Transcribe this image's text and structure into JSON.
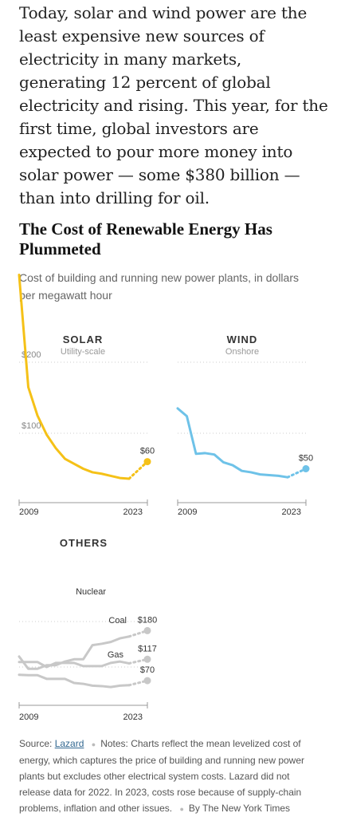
{
  "article": {
    "paragraph": "Today, solar and wind power are the least expensive new sources of electricity in many markets, generating 12 percent of global electricity and rising. This year, for the first time, global investors are expected to pour more money into solar power — some $380 billion — than into drilling for oil."
  },
  "chart": {
    "title": "The Cost of Renewable Energy Has Plummeted",
    "subtitle": "Cost of building and running new power plants, in dollars per megawatt hour"
  },
  "chart_data": [
    {
      "type": "line",
      "title": "SOLAR",
      "subtitle": "Utility-scale",
      "color": "#f5c117",
      "ylim": [
        0,
        330
      ],
      "y_ticks": [
        {
          "value": 200,
          "label": "$200"
        },
        {
          "value": 100,
          "label": "$100"
        }
      ],
      "x_ticks": [
        "2009",
        "2023"
      ],
      "end_label": "$60",
      "series": [
        {
          "x": [
            2009,
            2010,
            2011,
            2012,
            2013,
            2014,
            2015,
            2016,
            2017,
            2018,
            2019,
            2020,
            2021,
            2023
          ],
          "y": [
            323,
            165,
            125,
            98,
            79,
            64,
            57,
            50,
            45,
            43,
            40,
            37,
            36,
            60
          ],
          "gap_before_last": true
        }
      ]
    },
    {
      "type": "line",
      "title": "WIND",
      "subtitle": "Onshore",
      "color": "#6ec2e8",
      "ylim": [
        0,
        330
      ],
      "x_ticks": [
        "2009",
        "2023"
      ],
      "end_label": "$50",
      "series": [
        {
          "x": [
            2009,
            2010,
            2011,
            2012,
            2013,
            2014,
            2015,
            2016,
            2017,
            2018,
            2019,
            2020,
            2021,
            2023
          ],
          "y": [
            135,
            124,
            71,
            72,
            70,
            59,
            55,
            47,
            45,
            42,
            41,
            40,
            38,
            50
          ],
          "gap_before_last": true
        }
      ]
    },
    {
      "type": "line",
      "title": "OTHERS",
      "color": "#c8c8c8",
      "ylim": [
        0,
        330
      ],
      "x_ticks": [
        "2009",
        "2023"
      ],
      "series": [
        {
          "name": "Nuclear",
          "end_label": "$180",
          "x": [
            2009,
            2010,
            2011,
            2012,
            2013,
            2014,
            2015,
            2016,
            2017,
            2018,
            2019,
            2020,
            2021,
            2023
          ],
          "y": [
            123,
            96,
            96,
            104,
            104,
            112,
            117,
            117,
            148,
            151,
            155,
            163,
            167,
            180
          ],
          "gap_before_last": true
        },
        {
          "name": "Coal",
          "end_label": "$117",
          "x": [
            2009,
            2010,
            2011,
            2012,
            2013,
            2014,
            2015,
            2016,
            2017,
            2018,
            2019,
            2020,
            2021,
            2023
          ],
          "y": [
            111,
            111,
            111,
            100,
            109,
            109,
            109,
            102,
            102,
            102,
            109,
            112,
            108,
            117
          ],
          "gap_before_last": true
        },
        {
          "name": "Gas",
          "end_label": "$70",
          "x": [
            2009,
            2010,
            2011,
            2012,
            2013,
            2014,
            2015,
            2016,
            2017,
            2018,
            2019,
            2020,
            2021,
            2023
          ],
          "y": [
            83,
            82,
            82,
            74,
            74,
            74,
            65,
            63,
            59,
            58,
            56,
            59,
            60,
            70
          ],
          "gap_before_last": true
        }
      ]
    }
  ],
  "notes": {
    "source_prefix": "Source:",
    "source_link": "Lazard",
    "text": "Notes: Charts reflect the mean levelized cost of energy, which captures the price of building and running new power plants but excludes other electrical system costs. Lazard did not release data for 2022. In 2023, costs rose because of supply-chain problems, inflation and other issues.",
    "credit": "By The New York Times"
  }
}
